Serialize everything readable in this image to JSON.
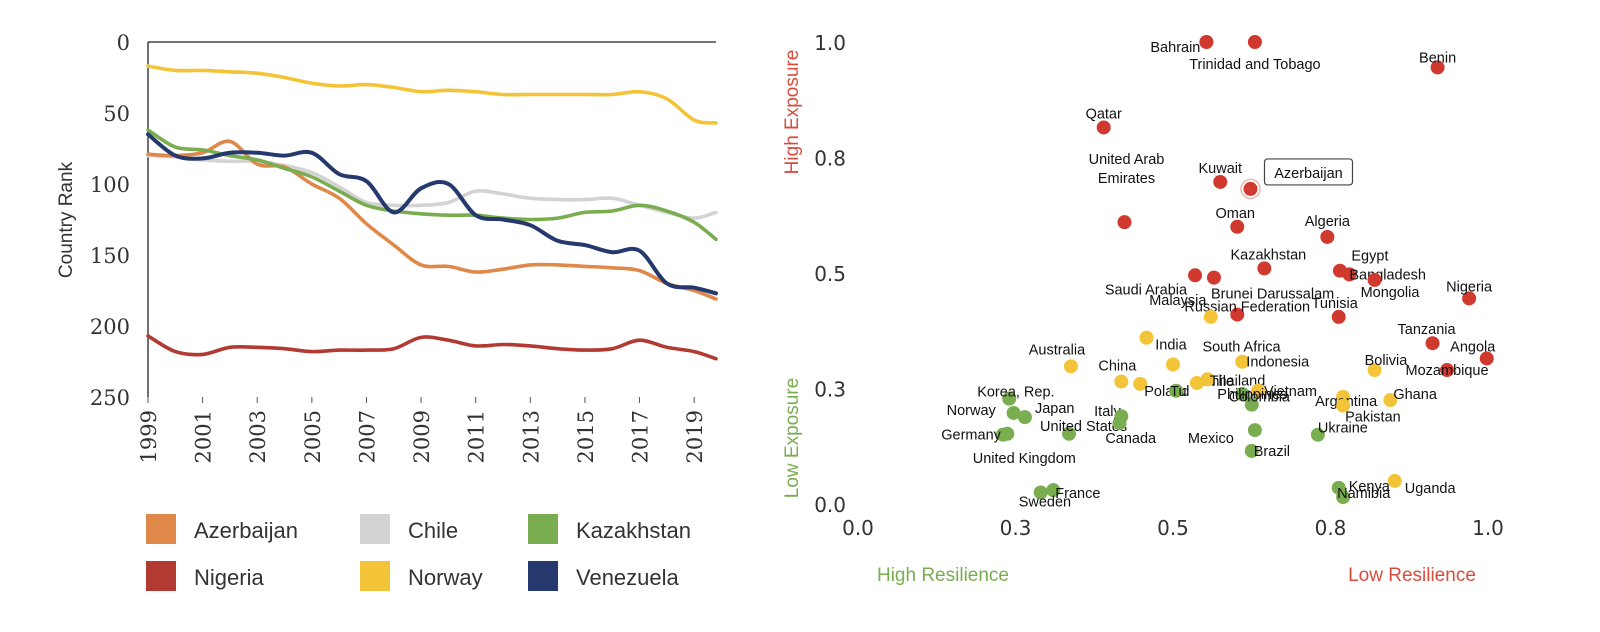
{
  "chart_data": [
    {
      "type": "line",
      "ylabel": "Country Rank",
      "ylim": [
        0,
        250
      ],
      "y_inverted": true,
      "y_ticks": [
        "0",
        "50",
        "100",
        "150",
        "200",
        "250"
      ],
      "x_ticks": [
        "1999",
        "2001",
        "2003",
        "2005",
        "2007",
        "2009",
        "2011",
        "2013",
        "2015",
        "2017",
        "2019"
      ],
      "x": [
        1999,
        2000,
        2001,
        2002,
        2003,
        2004,
        2005,
        2006,
        2007,
        2008,
        2009,
        2010,
        2011,
        2012,
        2013,
        2014,
        2015,
        2016,
        2017,
        2018,
        2019,
        2019.8
      ],
      "legend_position": "bottom",
      "series": [
        {
          "name": "Azerbaijan",
          "color": "#E0884A",
          "values": [
            79,
            80,
            78,
            70,
            86,
            88,
            100,
            110,
            128,
            143,
            157,
            158,
            162,
            160,
            157,
            157,
            158,
            159,
            161,
            170,
            175,
            181
          ]
        },
        {
          "name": "Chile",
          "color": "#D3D3D3",
          "values": [
            80,
            81,
            83,
            84,
            84,
            87,
            92,
            102,
            113,
            115,
            115,
            113,
            105,
            107,
            110,
            111,
            111,
            110,
            115,
            120,
            124,
            120
          ]
        },
        {
          "name": "Kazakhstan",
          "color": "#79AD4F",
          "values": [
            62,
            74,
            76,
            80,
            83,
            89,
            95,
            105,
            115,
            119,
            121,
            122,
            122,
            124,
            125,
            124,
            120,
            119,
            115,
            119,
            127,
            139
          ]
        },
        {
          "name": "Nigeria",
          "color": "#B23A32",
          "values": [
            207,
            218,
            220,
            215,
            215,
            216,
            218,
            217,
            217,
            216,
            208,
            210,
            214,
            213,
            214,
            216,
            217,
            216,
            210,
            215,
            218,
            223
          ]
        },
        {
          "name": "Norway",
          "color": "#F4C438",
          "values": [
            17,
            20,
            20,
            21,
            22,
            25,
            29,
            31,
            30,
            32,
            35,
            34,
            35,
            37,
            37,
            37,
            37,
            37,
            35,
            40,
            55,
            57
          ]
        },
        {
          "name": "Venezuela",
          "color": "#25396E",
          "values": [
            65,
            80,
            82,
            78,
            78,
            80,
            78,
            93,
            98,
            120,
            103,
            100,
            122,
            125,
            129,
            140,
            143,
            148,
            147,
            170,
            173,
            177
          ]
        }
      ]
    },
    {
      "type": "scatter",
      "xlim": [
        0,
        1
      ],
      "ylim": [
        0,
        1
      ],
      "x_ticks": [
        "0.0",
        "0.3",
        "0.5",
        "0.8",
        "1.0"
      ],
      "x_tick_values": [
        0,
        0.25,
        0.5,
        0.75,
        1
      ],
      "y_ticks": [
        "0.0",
        "0.3",
        "0.5",
        "0.8",
        "1.0"
      ],
      "y_tick_values": [
        0,
        0.25,
        0.5,
        0.75,
        1
      ],
      "y_label_top": "High Exposure",
      "y_label_bottom": "Low Exposure",
      "x_label_left": "High Resilience",
      "x_label_right": "Low Resilience",
      "colors": {
        "high": "#D0392E",
        "mid": "#F4C438",
        "low": "#79AD4F",
        "axis_high": "#D94C3D",
        "axis_low": "#79AD4F"
      },
      "highlight": "Azerbaijan",
      "points": [
        {
          "label": "Bahrain",
          "x": 0.553,
          "y": 1.0,
          "group": "high"
        },
        {
          "label": "Trinidad and Tobago",
          "x": 0.63,
          "y": 1.0,
          "group": "high"
        },
        {
          "label": "Benin",
          "x": 0.92,
          "y": 0.945,
          "group": "high"
        },
        {
          "label": "Qatar",
          "x": 0.39,
          "y": 0.815,
          "group": "high"
        },
        {
          "label": "Kuwait",
          "x": 0.575,
          "y": 0.697,
          "group": "high"
        },
        {
          "label": "Azerbaijan",
          "x": 0.623,
          "y": 0.682,
          "group": "high"
        },
        {
          "label": "Oman",
          "x": 0.602,
          "y": 0.6,
          "group": "high"
        },
        {
          "label": "United Arab Emirates",
          "x": 0.423,
          "y": 0.61,
          "group": "high"
        },
        {
          "label": "Algeria",
          "x": 0.745,
          "y": 0.578,
          "group": "high"
        },
        {
          "label": "Egypt",
          "x": 0.765,
          "y": 0.505,
          "group": "high"
        },
        {
          "label": "Bangladesh",
          "x": 0.78,
          "y": 0.497,
          "group": "high"
        },
        {
          "label": "Mongolia",
          "x": 0.82,
          "y": 0.485,
          "group": "high"
        },
        {
          "label": "Kazakhstan",
          "x": 0.645,
          "y": 0.51,
          "group": "high"
        },
        {
          "label": "Saudi Arabia",
          "x": 0.535,
          "y": 0.495,
          "group": "high"
        },
        {
          "label": "Brunei Darussalam",
          "x": 0.565,
          "y": 0.49,
          "group": "high"
        },
        {
          "label": "Russian Federation",
          "x": 0.602,
          "y": 0.41,
          "group": "high"
        },
        {
          "label": "Tunisia",
          "x": 0.763,
          "y": 0.405,
          "group": "high"
        },
        {
          "label": "Nigeria",
          "x": 0.97,
          "y": 0.445,
          "group": "high"
        },
        {
          "label": "Tanzania",
          "x": 0.912,
          "y": 0.348,
          "group": "high"
        },
        {
          "label": "Angola",
          "x": 0.998,
          "y": 0.315,
          "group": "high"
        },
        {
          "label": "Mozambique",
          "x": 0.935,
          "y": 0.29,
          "group": "high"
        },
        {
          "label": "Malaysia",
          "x": 0.56,
          "y": 0.405,
          "group": "mid"
        },
        {
          "label": "South Africa",
          "x": 0.458,
          "y": 0.36,
          "group": "mid"
        },
        {
          "label": "Australia",
          "x": 0.338,
          "y": 0.298,
          "group": "mid"
        },
        {
          "label": "India",
          "x": 0.5,
          "y": 0.302,
          "group": "mid"
        },
        {
          "label": "China",
          "x": 0.418,
          "y": 0.265,
          "group": "mid"
        },
        {
          "label": "Indonesia",
          "x": 0.61,
          "y": 0.308,
          "group": "mid"
        },
        {
          "label": "Bolivia",
          "x": 0.82,
          "y": 0.29,
          "group": "mid"
        },
        {
          "label": "Poland",
          "x": 0.448,
          "y": 0.26,
          "group": "mid"
        },
        {
          "label": "Chile",
          "x": 0.538,
          "y": 0.262,
          "group": "mid"
        },
        {
          "label": "Thailand",
          "x": 0.555,
          "y": 0.27,
          "group": "mid"
        },
        {
          "label": "Vietnam",
          "x": 0.635,
          "y": 0.245,
          "group": "mid"
        },
        {
          "label": "Argentina",
          "x": 0.77,
          "y": 0.232,
          "group": "mid"
        },
        {
          "label": "Ghana",
          "x": 0.845,
          "y": 0.225,
          "group": "mid"
        },
        {
          "label": "Pakistan",
          "x": 0.77,
          "y": 0.213,
          "group": "mid"
        },
        {
          "label": "Uganda",
          "x": 0.852,
          "y": 0.05,
          "group": "mid"
        },
        {
          "label": "Korea, Rep.",
          "x": 0.24,
          "y": 0.228,
          "group": "low"
        },
        {
          "label": "Norway",
          "x": 0.247,
          "y": 0.197,
          "group": "low"
        },
        {
          "label": "Japan",
          "x": 0.265,
          "y": 0.188,
          "group": "low"
        },
        {
          "label": "Germany",
          "x": 0.23,
          "y": 0.15,
          "group": "low"
        },
        {
          "label": "United Kingdom",
          "x": 0.237,
          "y": 0.152,
          "group": "low"
        },
        {
          "label": "United States",
          "x": 0.335,
          "y": 0.152,
          "group": "low"
        },
        {
          "label": "Italy",
          "x": 0.415,
          "y": 0.175,
          "group": "low"
        },
        {
          "label": "Canada",
          "x": 0.418,
          "y": 0.19,
          "group": "low"
        },
        {
          "label": "Tu",
          "x": 0.505,
          "y": 0.245,
          "group": "low"
        },
        {
          "label": "Philippines",
          "x": 0.61,
          "y": 0.238,
          "group": "low"
        },
        {
          "label": "Mexico",
          "x": 0.63,
          "y": 0.16,
          "group": "low"
        },
        {
          "label": "Colombia",
          "x": 0.625,
          "y": 0.215,
          "group": "low"
        },
        {
          "label": "Brazil",
          "x": 0.625,
          "y": 0.115,
          "group": "low"
        },
        {
          "label": "Ukraine",
          "x": 0.73,
          "y": 0.15,
          "group": "low"
        },
        {
          "label": "France",
          "x": 0.31,
          "y": 0.03,
          "group": "low"
        },
        {
          "label": "Sweden",
          "x": 0.29,
          "y": 0.025,
          "group": "low"
        },
        {
          "label": "Kenya",
          "x": 0.763,
          "y": 0.035,
          "group": "low"
        },
        {
          "label": "Namibia",
          "x": 0.77,
          "y": 0.015,
          "group": "low"
        }
      ]
    }
  ]
}
